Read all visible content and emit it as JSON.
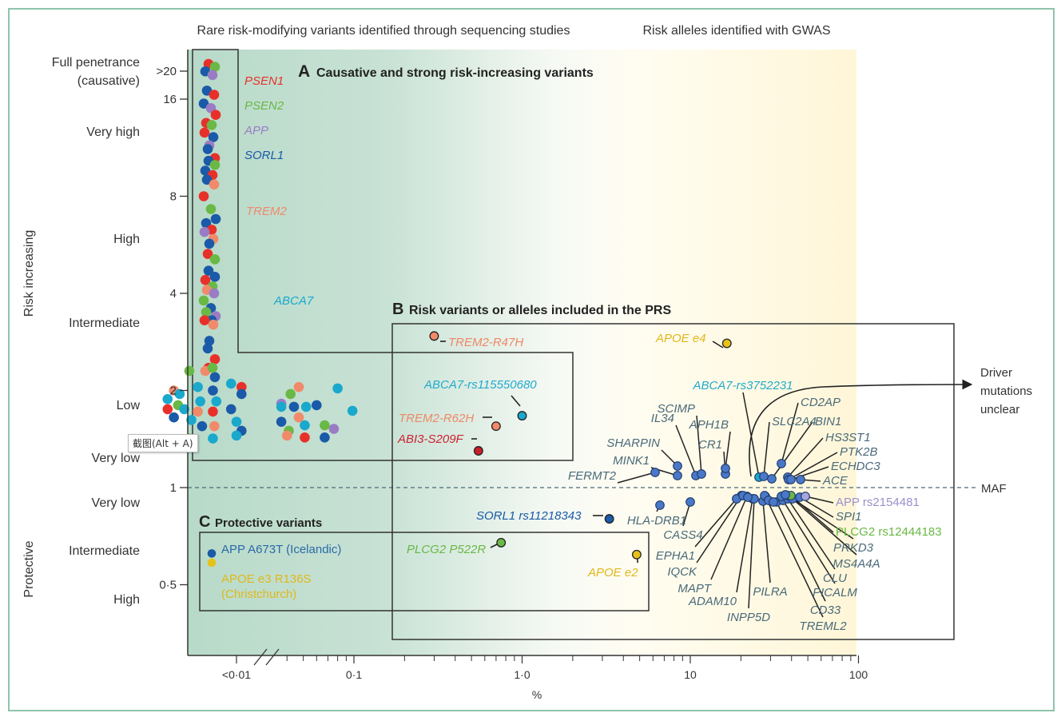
{
  "chart_data": {
    "type": "scatter",
    "title": "",
    "xlabel": "%",
    "ylabel_top": "Risk increasing",
    "ylabel_bottom": "Protective",
    "x_scale": "log",
    "y_scale": "log",
    "xlim": [
      0.005,
      100
    ],
    "ylim": [
      0.35,
      25
    ],
    "x_ticks": [
      {
        "value": 0.007,
        "label": "<0·01"
      },
      {
        "value": 0.1,
        "label": "0·1"
      },
      {
        "value": 1.0,
        "label": "1·0"
      },
      {
        "value": 10,
        "label": "10"
      },
      {
        "value": 100,
        "label": "100"
      }
    ],
    "y_ticks": [
      {
        "value": 20,
        "label": ">20"
      },
      {
        "value": 16,
        "label": "16"
      },
      {
        "value": 8,
        "label": "8"
      },
      {
        "value": 4,
        "label": "4"
      },
      {
        "value": 2,
        "label": "2"
      },
      {
        "value": 1,
        "label": "1"
      },
      {
        "value": 0.5,
        "label": "0·5"
      }
    ],
    "risk_categories": [
      {
        "label": "Full penetrance\n(causative)",
        "y": 19.5
      },
      {
        "label": "Very high",
        "y": 12
      },
      {
        "label": "High",
        "y": 5.6
      },
      {
        "label": "Intermediate",
        "y": 2.8
      },
      {
        "label": "Low",
        "y": 1.65
      },
      {
        "label": "Very low",
        "y": 1.2
      },
      {
        "label": "Very low",
        "y": 0.85
      },
      {
        "label": "Intermediate",
        "y": 0.62
      },
      {
        "label": "High",
        "y": 0.45
      }
    ],
    "header_left": "Rare risk-modifying variants identified through sequencing studies",
    "header_right": "Risk alleles identified with GWAS",
    "maf_label": "MAF",
    "driver_label": [
      "Driver",
      "mutations",
      "unclear"
    ],
    "panels": [
      {
        "letter": "A",
        "title": "Causative and strong risk-increasing variants"
      },
      {
        "letter": "B",
        "title": "Risk variants or alleles included in the PRS"
      },
      {
        "letter": "C",
        "title": "Protective variants"
      }
    ],
    "gene_colors": {
      "PSEN1": "#e8302a",
      "PSEN2": "#6ab845",
      "APP": "#9a7cc4",
      "SORL1": "#1a5aa8",
      "TREM2": "#f08a6a",
      "ABCA7": "#1aa8cc",
      "GWAS": "#4a78c8",
      "APOE": "#e6c21a",
      "ABI3": "#c8202a"
    },
    "legend_a": [
      {
        "name": "PSEN1",
        "color": "#e8302a"
      },
      {
        "name": "PSEN2",
        "color": "#6ab845"
      },
      {
        "name": "APP",
        "color": "#9a7cc4"
      },
      {
        "name": "SORL1",
        "color": "#1a5aa8"
      },
      {
        "name": "TREM2",
        "color": "#f08a6a"
      },
      {
        "name": "ABCA7",
        "color": "#1aa8cc"
      }
    ],
    "rare_cluster_dots": [
      [
        "PSEN1",
        20.5
      ],
      [
        "PSEN2",
        20.3
      ],
      [
        "SORL1",
        19.5
      ],
      [
        "APP",
        19.0
      ],
      [
        "SORL1",
        17.0
      ],
      [
        "PSEN1",
        16.5
      ],
      [
        "SORL1",
        15.5
      ],
      [
        "APP",
        15.0
      ],
      [
        "PSEN1",
        14.3
      ],
      [
        "PSEN1",
        13.5
      ],
      [
        "PSEN2",
        13.3
      ],
      [
        "PSEN1",
        12.6
      ],
      [
        "SORL1",
        12.2
      ],
      [
        "APP",
        11.5
      ],
      [
        "SORL1",
        11.2
      ],
      [
        "PSEN1",
        10.5
      ],
      [
        "SORL1",
        10.3
      ],
      [
        "PSEN2",
        10.0
      ],
      [
        "SORL1",
        9.6
      ],
      [
        "PSEN1",
        9.3
      ],
      [
        "SORL1",
        9.0
      ],
      [
        "TREM2",
        8.7
      ],
      [
        "PSEN1",
        8.0
      ],
      [
        "PSEN2",
        7.3
      ],
      [
        "SORL1",
        6.8
      ],
      [
        "SORL1",
        6.6
      ],
      [
        "PSEN1",
        6.3
      ],
      [
        "APP",
        6.2
      ],
      [
        "TREM2",
        5.9
      ],
      [
        "SORL1",
        5.7
      ],
      [
        "PSEN1",
        5.3
      ],
      [
        "PSEN2",
        5.1
      ],
      [
        "SORL1",
        4.7
      ],
      [
        "SORL1",
        4.5
      ],
      [
        "PSEN1",
        4.4
      ],
      [
        "PSEN2",
        4.2
      ],
      [
        "TREM2",
        4.1
      ],
      [
        "APP",
        4.0
      ],
      [
        "PSEN2",
        3.8
      ],
      [
        "SORL1",
        3.6
      ],
      [
        "APP",
        3.4
      ],
      [
        "PSEN2",
        3.5
      ],
      [
        "SORL1",
        3.3
      ],
      [
        "PSEN1",
        3.3
      ],
      [
        "TREM2",
        3.2
      ],
      [
        "SORL1",
        2.85
      ],
      [
        "SORL1",
        2.7
      ],
      [
        "PSEN1",
        2.5
      ],
      [
        "PSEN1",
        2.35
      ],
      [
        "SORL1",
        2.2
      ],
      [
        "TREM2",
        2.3
      ],
      [
        "PSEN2",
        2.35
      ]
    ],
    "rare_lowrisk_dots": [
      [
        0.0065,
        2.1,
        "ABCA7"
      ],
      [
        0.0075,
        2.05,
        "PSEN1"
      ],
      [
        0.0075,
        1.95,
        "SORL1"
      ],
      [
        0.0085,
        2.0,
        "TREM2"
      ],
      [
        0.0092,
        1.95,
        "ABCA7"
      ],
      [
        0.0078,
        1.88,
        "ABCA7"
      ],
      [
        0.0065,
        1.75,
        "SORL1"
      ],
      [
        0.0078,
        1.75,
        "PSEN1"
      ],
      [
        0.009,
        1.8,
        "PSEN2"
      ],
      [
        0.0098,
        1.75,
        "ABCA7"
      ],
      [
        0.0118,
        1.72,
        "TREM2"
      ],
      [
        0.0145,
        1.72,
        "PSEN1"
      ],
      [
        0.007,
        1.6,
        "ABCA7"
      ],
      [
        0.0085,
        1.65,
        "SORL1"
      ],
      [
        0.0075,
        1.5,
        "SORL1"
      ],
      [
        0.007,
        1.45,
        "ABCA7"
      ],
      [
        0.0108,
        1.62,
        "ABCA7"
      ],
      [
        0.0125,
        1.55,
        "SORL1"
      ],
      [
        0.0148,
        1.55,
        "TREM2"
      ],
      [
        0.0105,
        1.42,
        "PSEN2"
      ],
      [
        0.0145,
        1.42,
        "ABCA7"
      ],
      [
        0.0105,
        2.3,
        "PSEN2"
      ],
      [
        0.0118,
        2.05,
        "ABCA7"
      ],
      [
        0.0145,
        2.0,
        "SORL1"
      ],
      [
        0.0122,
        1.85,
        "ABCA7"
      ],
      [
        0.0152,
        1.85,
        "ABCA7"
      ],
      [
        0.037,
        1.82,
        "APP"
      ],
      [
        0.037,
        1.78,
        "ABCA7"
      ],
      [
        0.042,
        1.95,
        "PSEN2"
      ],
      [
        0.047,
        2.05,
        "TREM2"
      ],
      [
        0.044,
        1.78,
        "SORL1"
      ],
      [
        0.052,
        1.78,
        "ABCA7"
      ],
      [
        0.06,
        1.8,
        "SORL1"
      ],
      [
        0.08,
        2.03,
        "ABCA7"
      ],
      [
        0.098,
        1.73,
        "ABCA7"
      ],
      [
        0.037,
        1.6,
        "SORL1"
      ],
      [
        0.047,
        1.65,
        "TREM2"
      ],
      [
        0.051,
        1.56,
        "ABCA7"
      ],
      [
        0.041,
        1.5,
        "PSEN2"
      ],
      [
        0.067,
        1.56,
        "PSEN2"
      ],
      [
        0.076,
        1.52,
        "APP"
      ],
      [
        0.04,
        1.45,
        "TREM2"
      ],
      [
        0.051,
        1.43,
        "PSEN1"
      ],
      [
        0.067,
        1.43,
        "SORL1"
      ]
    ],
    "labeled_points": [
      {
        "name": "TREM2-R47H",
        "x": 0.3,
        "y": 2.95,
        "color": "TREM2",
        "label_color": "#ee8866"
      },
      {
        "name": "ABCA7-rs115550680",
        "x": 1.0,
        "y": 1.67,
        "color": "ABCA7",
        "label_color": "#22aacc"
      },
      {
        "name": "TREM2-R62H",
        "x": 0.7,
        "y": 1.55,
        "color": "TREM2",
        "label_color": "#ee8866"
      },
      {
        "name": "ABI3-S209F",
        "x": 0.55,
        "y": 1.3,
        "color": "ABI3",
        "label_color": "#cc2233"
      },
      {
        "name": "APOE e4",
        "x": 16.5,
        "y": 2.8,
        "color": "APOE",
        "label_color": "#e0b81a"
      },
      {
        "name": "SORL1 rs11218343",
        "x": 3.3,
        "y": 0.8,
        "color": "SORL1",
        "label_color": "#1a5aa8"
      },
      {
        "name": "PLCG2 P522R",
        "x": 0.75,
        "y": 0.675,
        "color": "PSEN2",
        "label_color": "#6ab845"
      },
      {
        "name": "APOE e2",
        "x": 4.8,
        "y": 0.62,
        "color": "APOE",
        "label_color": "#e0b81a"
      },
      {
        "name": "APP A673T (Icelandic)",
        "x": 0.006,
        "y": 0.625,
        "color": "SORL1",
        "label_color": "#2a6aa8"
      },
      {
        "name": "APOE e3 R136S (Christchurch)",
        "x": 0.006,
        "y": 0.585,
        "color": "APOE",
        "label_color": "#e0b81a"
      }
    ],
    "gwas_above": [
      {
        "name": "FERMT2",
        "x": 4.8,
        "y": 1.15
      },
      {
        "name": "MINK1",
        "x": 8.2,
        "y": 1.13
      },
      {
        "name": "SHARPIN",
        "x": 8.2,
        "y": 1.19
      },
      {
        "name": "IL34",
        "x": 11.2,
        "y": 1.13
      },
      {
        "name": "SCIMP",
        "x": 11.8,
        "y": 1.14
      },
      {
        "name": "CR1",
        "x": 14.8,
        "y": 1.13
      },
      {
        "name": "APH1B",
        "x": 14.8,
        "y": 1.16
      },
      {
        "name": "ABCA7-rs3752231",
        "x": 25,
        "y": 1.12
      },
      {
        "name": "SLC2A4",
        "x": 26.5,
        "y": 1.12
      },
      {
        "name": "CD2AP",
        "x": 35,
        "y": 1.22
      },
      {
        "name": "BIN1",
        "x": 31,
        "y": 1.11
      },
      {
        "name": "HS3ST1",
        "x": 38,
        "y": 1.13
      },
      {
        "name": "PTK2B",
        "x": 39,
        "y": 1.11
      },
      {
        "name": "ECHDC3",
        "x": 40,
        "y": 1.105
      },
      {
        "name": "ACE",
        "x": 44,
        "y": 1.11
      }
    ],
    "gwas_below": [
      {
        "name": "HLA-DRB1",
        "x": 6.5,
        "y": 0.9
      },
      {
        "name": "CASS4",
        "x": 10.0,
        "y": 0.905
      },
      {
        "name": "EPHA1",
        "x": 19.0,
        "y": 0.93
      },
      {
        "name": "IQCK",
        "x": 20.0,
        "y": 0.95
      },
      {
        "name": "MAPT",
        "x": 21.5,
        "y": 0.945
      },
      {
        "name": "ADAM10",
        "x": 23,
        "y": 0.935
      },
      {
        "name": "INPP5D",
        "x": 27,
        "y": 0.93
      },
      {
        "name": "PILRA",
        "x": 26.5,
        "y": 0.945
      },
      {
        "name": "TREML2",
        "x": 28,
        "y": 0.94
      },
      {
        "name": "CD33",
        "x": 30.5,
        "y": 0.93
      },
      {
        "name": "PICALM",
        "x": 33,
        "y": 0.93
      },
      {
        "name": "CLU",
        "x": 36,
        "y": 0.93
      },
      {
        "name": "MS4A4A",
        "x": 37,
        "y": 0.95
      },
      {
        "name": "PRKD3",
        "x": 40,
        "y": 0.945
      },
      {
        "name": "PLCG2 rs12444183",
        "x": 40,
        "y": 0.955,
        "dot": "PSEN2",
        "label_color": "#6ab845"
      },
      {
        "name": "SPI1",
        "x": 45,
        "y": 0.945
      },
      {
        "name": "APP rs2154481",
        "x": 48,
        "y": 0.955,
        "dot": "APP",
        "label_color": "#9a90cc"
      }
    ],
    "colors": {
      "green_bg": "#bcdccc",
      "yellow_bg": "#fff6d8",
      "gwas_label": "#4a6a7a",
      "frame": "#8fc3ad",
      "axis": "#333333"
    }
  },
  "overlay": {
    "tooltip": "截图(Alt + A)"
  }
}
